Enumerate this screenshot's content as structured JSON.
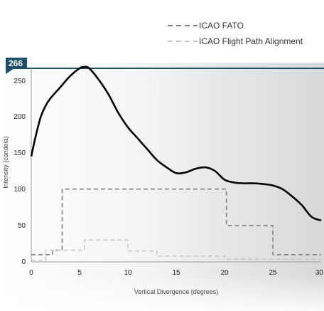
{
  "chart_data": {
    "type": "line",
    "xlabel": "Vertical Divergence (degrees)",
    "ylabel": "Intensity (candela)",
    "xlim": [
      0,
      30
    ],
    "ylim": [
      0,
      266
    ],
    "x_ticks": [
      "0",
      "5",
      "10",
      "15",
      "20",
      "25",
      "30"
    ],
    "y_ticks": [
      "0",
      "50",
      "100",
      "150",
      "200",
      "250"
    ],
    "max_label": "266",
    "legend_position": "top-right",
    "grid": false,
    "series": [
      {
        "kind": "measured",
        "color": "#000000",
        "x": [
          0,
          0.5,
          1,
          1.5,
          2,
          3,
          4,
          5,
          5.5,
          6,
          7,
          8,
          9,
          10,
          11,
          12,
          13,
          14,
          15,
          16,
          17,
          18,
          19,
          20,
          21,
          22,
          23,
          24,
          25,
          26,
          27,
          28,
          29,
          30
        ],
        "y": [
          145,
          175,
          200,
          215,
          225,
          240,
          255,
          266,
          268,
          266,
          250,
          230,
          205,
          185,
          170,
          155,
          140,
          130,
          122,
          123,
          128,
          130,
          125,
          113,
          109,
          108,
          108,
          107,
          105,
          100,
          90,
          78,
          62,
          57
        ]
      },
      {
        "name": "ICAO FATO",
        "kind": "step",
        "color": "#7f7f7f",
        "dash": "6,4",
        "x": [
          0,
          2.2,
          2.2,
          3.2,
          3.2,
          20.2,
          20.2,
          25,
          25,
          30
        ],
        "y": [
          10,
          10,
          16,
          16,
          100,
          100,
          50,
          50,
          10,
          10
        ]
      },
      {
        "name": "ICAO Flight Path Alignment",
        "kind": "step",
        "color": "#c8c8c8",
        "dash": "6,4",
        "x": [
          0,
          1.5,
          1.5,
          5.5,
          5.5,
          10,
          10,
          13,
          13,
          20,
          20,
          30
        ],
        "y": [
          2,
          2,
          16,
          16,
          30,
          30,
          15,
          15,
          8,
          8,
          4,
          4
        ]
      }
    ]
  }
}
